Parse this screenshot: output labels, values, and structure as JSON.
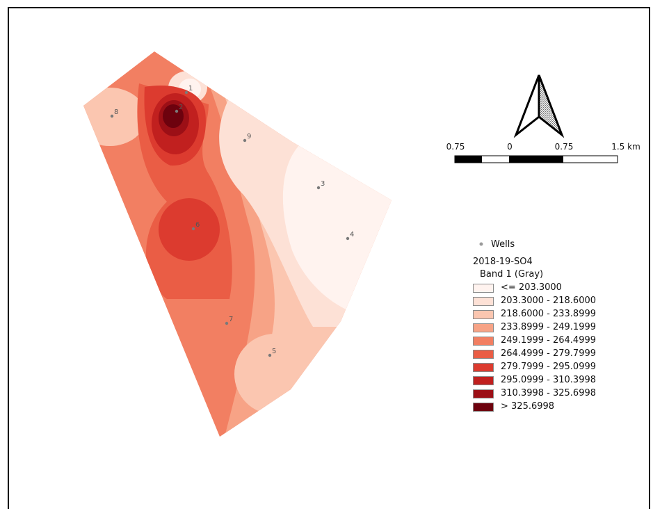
{
  "map": {
    "wells": [
      {
        "label": "1"
      },
      {
        "label": "2"
      },
      {
        "label": "3"
      },
      {
        "label": "4"
      },
      {
        "label": "5"
      },
      {
        "label": "6"
      },
      {
        "label": "7"
      },
      {
        "label": "8"
      },
      {
        "label": "9"
      }
    ],
    "well_color": "#7a7a7a"
  },
  "scalebar": {
    "labels": [
      "0.75",
      "0",
      "0.75",
      "1.5 km"
    ]
  },
  "legend": {
    "wells_label": "Wells",
    "layer_title": "2018-19-SO4",
    "band_title": "Band 1 (Gray)",
    "classes": [
      {
        "label": "<= 203.3000",
        "color": "#fff3ef"
      },
      {
        "label": "203.3000 - 218.6000",
        "color": "#fde1d6"
      },
      {
        "label": "218.6000 - 233.8999",
        "color": "#fbc6b0"
      },
      {
        "label": "233.8999 - 249.1999",
        "color": "#f7a386"
      },
      {
        "label": "249.1999 - 264.4999",
        "color": "#f27f62"
      },
      {
        "label": "264.4999 - 279.7999",
        "color": "#ea5d45"
      },
      {
        "label": "279.7999 - 295.0999",
        "color": "#dc3b2f"
      },
      {
        "label": "295.0999 - 310.3998",
        "color": "#c1201f"
      },
      {
        "label": "310.3998 - 325.6998",
        "color": "#9c0f16"
      },
      {
        "label": "> 325.6998",
        "color": "#6d020e"
      }
    ]
  }
}
